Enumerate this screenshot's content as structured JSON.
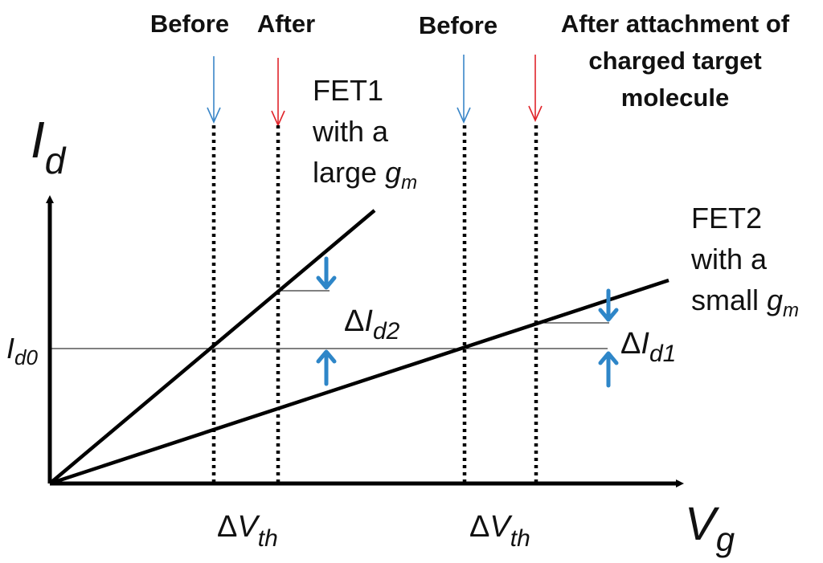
{
  "top_labels": {
    "before_left": "Before",
    "after_left": "After",
    "before_right": "Before",
    "after_right_line1": "After attachment of",
    "after_right_line2": "charged target",
    "after_right_line3": "molecule"
  },
  "fet1": {
    "line1": "FET1",
    "line2": "with a",
    "line3_prefix": "large ",
    "gm_symbol": "g",
    "gm_subscript": "m"
  },
  "fet2": {
    "line1": "FET2",
    "line2": "with a",
    "line3_prefix": "small ",
    "gm_symbol": "g",
    "gm_subscript": "m"
  },
  "axes": {
    "y_symbol": "I",
    "y_subscript": "d",
    "x_symbol": "V",
    "x_subscript": "g"
  },
  "reference_level": {
    "symbol": "I",
    "subscript": "d0"
  },
  "delta_labels": {
    "delta": "Δ",
    "id2_symbol": "I",
    "id2_subscript": "d2",
    "id1_symbol": "I",
    "id1_subscript": "d1",
    "vth_symbol": "V",
    "vth_subscript": "th"
  },
  "colors": {
    "before_arrow": "#3a86c8",
    "after_arrow": "#e0242a",
    "shift_arrow": "#2e86c8",
    "ink": "#111111"
  }
}
